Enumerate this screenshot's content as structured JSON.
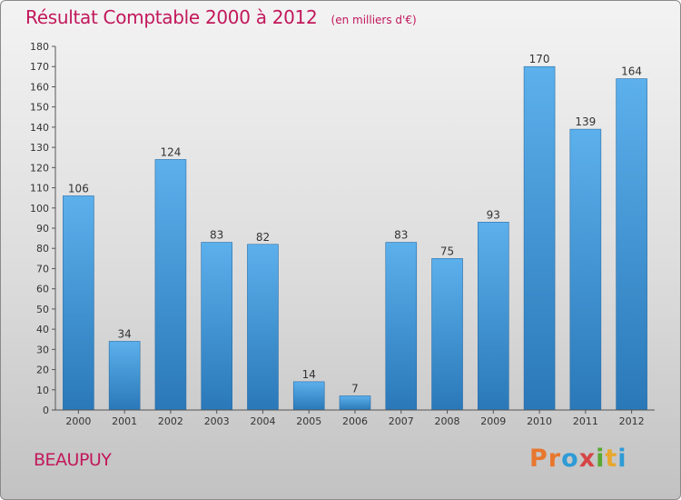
{
  "chart_data": {
    "type": "bar",
    "title": "Résultat Comptable 2000 à 2012",
    "subtitle": "(en milliers d'€)",
    "categories": [
      "2000",
      "2001",
      "2002",
      "2003",
      "2004",
      "2005",
      "2006",
      "2007",
      "2008",
      "2009",
      "2010",
      "2011",
      "2012"
    ],
    "values": [
      106,
      34,
      124,
      83,
      82,
      14,
      7,
      83,
      75,
      93,
      170,
      139,
      164
    ],
    "ylim": [
      0,
      180
    ],
    "ytick_step": 10,
    "xlabel": "",
    "ylabel": "",
    "grid": false,
    "bar_color": "#4a9de0"
  },
  "footer": {
    "commune": "BEAUPUY",
    "brand": "Proxiti",
    "brand_colors": [
      "#e8772e",
      "#e8772e",
      "#2e9bd6",
      "#d64545",
      "#5aa832",
      "#e8a72e",
      "#2e9bd6"
    ]
  }
}
